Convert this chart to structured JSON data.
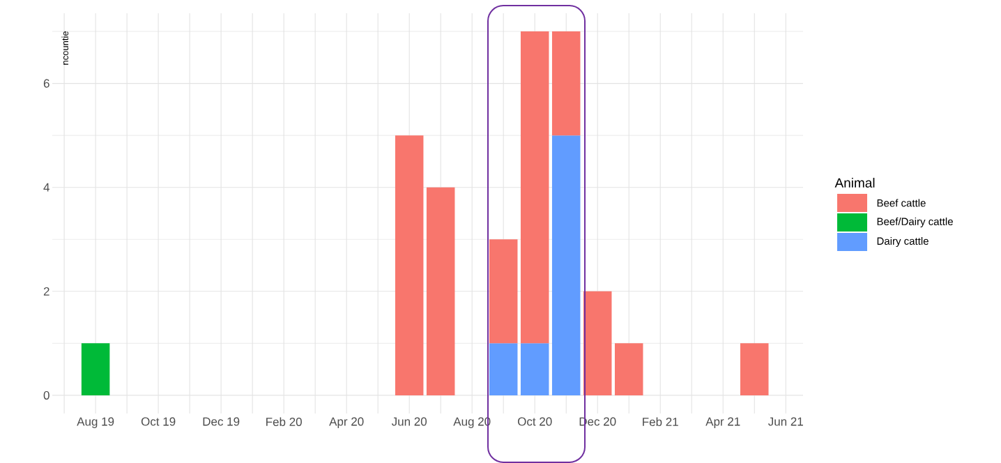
{
  "chart_data": {
    "type": "bar",
    "stacked": true,
    "ylabel": "ncountie",
    "legend_title": "Animal",
    "legend": "right",
    "grid": true,
    "categories": [
      null,
      "Aug 19",
      null,
      "Oct 19",
      null,
      "Dec 19",
      null,
      "Feb 20",
      null,
      "Apr 20",
      null,
      "Jun 20",
      null,
      "Aug 20",
      null,
      "Oct 20",
      null,
      "Dec 20",
      null,
      "Feb 21",
      null,
      "Apr 21",
      null,
      "Jun 21"
    ],
    "ylim": [
      -0.35,
      7.35
    ],
    "yticks": [
      0,
      2,
      4,
      6
    ],
    "series": [
      {
        "name": "Dairy cattle",
        "color": "#619cff",
        "values": [
          null,
          null,
          null,
          null,
          null,
          null,
          null,
          null,
          null,
          null,
          null,
          null,
          null,
          null,
          1,
          1,
          5,
          null,
          null,
          null,
          null,
          null,
          null,
          null
        ]
      },
      {
        "name": "Beef/Dairy cattle",
        "color": "#00ba38",
        "values": [
          null,
          1,
          null,
          null,
          null,
          null,
          null,
          null,
          null,
          null,
          null,
          null,
          null,
          null,
          null,
          null,
          null,
          null,
          null,
          null,
          null,
          null,
          null,
          null
        ]
      },
      {
        "name": "Beef cattle",
        "color": "#f8766d",
        "values": [
          null,
          null,
          null,
          null,
          null,
          null,
          null,
          null,
          null,
          null,
          null,
          5,
          4,
          null,
          2,
          6,
          2,
          2,
          1,
          null,
          null,
          null,
          1,
          null
        ]
      }
    ]
  }
}
